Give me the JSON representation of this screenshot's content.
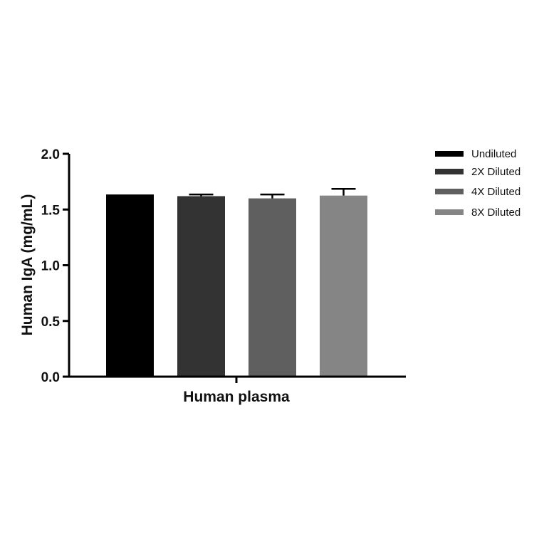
{
  "chart_data": {
    "type": "bar",
    "title": "",
    "xlabel": "Human plasma",
    "ylabel": "Human IgA (mg/mL)",
    "ylim": [
      0,
      2.0
    ],
    "yticks": [
      "0.0",
      "0.5",
      "1.0",
      "1.5",
      "2.0"
    ],
    "grid": false,
    "legend_position": "right",
    "series": [
      {
        "name": "Undiluted",
        "value": 1.635,
        "error": 0.0,
        "color": "#000000"
      },
      {
        "name": "2X Diluted",
        "value": 1.62,
        "error": 0.015,
        "color": "#333333"
      },
      {
        "name": "4X Diluted",
        "value": 1.6,
        "error": 0.035,
        "color": "#5f5f5f"
      },
      {
        "name": "8X Diluted",
        "value": 1.625,
        "error": 0.06,
        "color": "#858585"
      }
    ]
  }
}
